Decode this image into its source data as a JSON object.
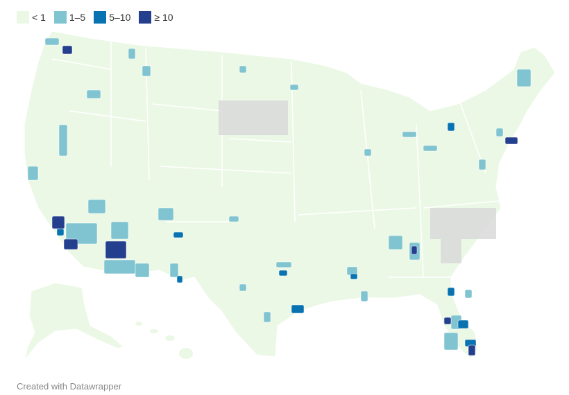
{
  "legend": {
    "items": [
      {
        "label": "< 1",
        "color": "#ecf8e6"
      },
      {
        "label": "1–5",
        "color": "#7fc4d0"
      },
      {
        "label": "5–10",
        "color": "#0873b0"
      },
      {
        "label": "≥ 10",
        "color": "#253f8f"
      }
    ]
  },
  "no_data_color": "#d9d9d9",
  "footer": "Created with Datawrapper"
}
